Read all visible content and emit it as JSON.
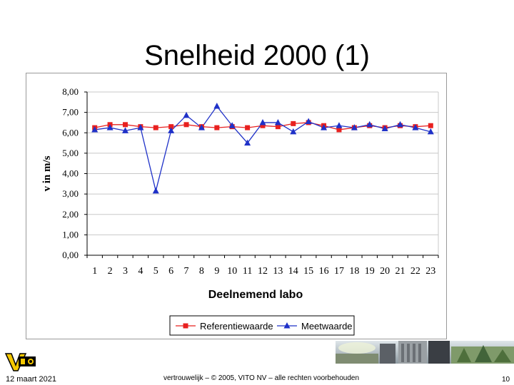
{
  "slide": {
    "title": "Snelheid 2000 (1)",
    "date": "12 maart 2021",
    "footer_note": "vertrouwelijk – © 2005, VITO NV – alle rechten voorbehouden",
    "page_number": "10"
  },
  "logo": {
    "icon": "vito-logo-icon",
    "text": "VITO"
  },
  "chart_data": {
    "type": "line",
    "title": "",
    "xlabel": "Deelnemend labo",
    "ylabel": "v in m/s",
    "categories": [
      "1",
      "2",
      "3",
      "4",
      "5",
      "6",
      "7",
      "8",
      "9",
      "10",
      "11",
      "12",
      "13",
      "14",
      "15",
      "16",
      "17",
      "18",
      "19",
      "20",
      "21",
      "22",
      "23"
    ],
    "yticks": [
      "0,00",
      "1,00",
      "2,00",
      "3,00",
      "4,00",
      "5,00",
      "6,00",
      "7,00",
      "8,00"
    ],
    "ylim": [
      0,
      8
    ],
    "grid": true,
    "legend_position": "bottom",
    "series": [
      {
        "name": "Referentiewaarde",
        "color": "#e8201f",
        "marker": "square",
        "values": [
          6.25,
          6.4,
          6.4,
          6.3,
          6.25,
          6.3,
          6.4,
          6.3,
          6.25,
          6.3,
          6.25,
          6.35,
          6.3,
          6.45,
          6.5,
          6.35,
          6.15,
          6.25,
          6.35,
          6.25,
          6.35,
          6.3,
          6.35
        ]
      },
      {
        "name": "Meetwaarde",
        "color": "#1f31c8",
        "marker": "triangle",
        "values": [
          6.15,
          6.25,
          6.1,
          6.25,
          3.15,
          6.1,
          6.85,
          6.25,
          7.3,
          6.35,
          5.5,
          6.5,
          6.5,
          6.05,
          6.55,
          6.25,
          6.35,
          6.25,
          6.4,
          6.2,
          6.4,
          6.25,
          6.05
        ]
      }
    ]
  }
}
